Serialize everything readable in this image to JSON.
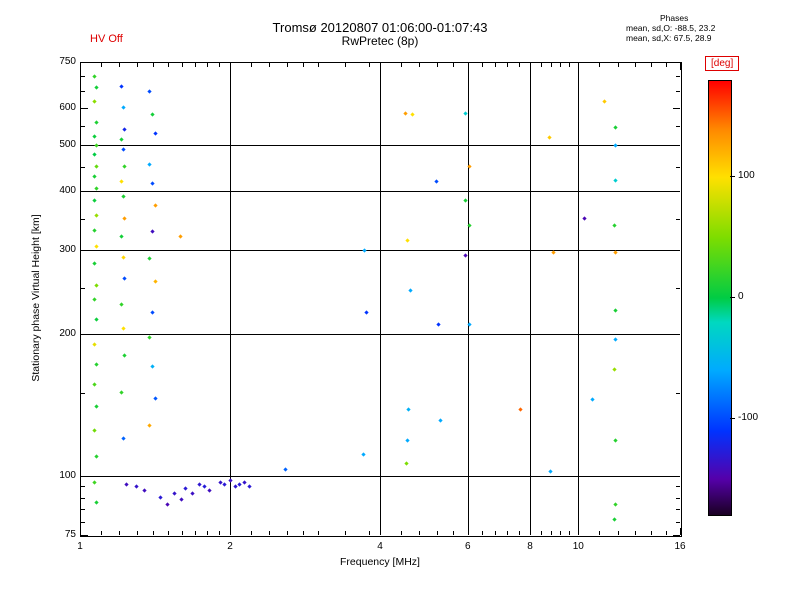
{
  "header": {
    "hv_status": "HV Off",
    "title": "Tromsø 20120807 01:06:00-01:07:43",
    "subtitle": "RwPretec (8p)",
    "phases": {
      "heading": "Phases",
      "line_o": "mean, sd,O: -88.5, 23.2",
      "line_x": "mean, sd,X:  67.5, 28.9"
    }
  },
  "axes": {
    "x": {
      "label": "Frequency [MHz]",
      "scale": "log",
      "range": [
        1,
        16
      ],
      "ticks": [
        1,
        2,
        4,
        6,
        8,
        10,
        16
      ],
      "minor_ticks": [
        1.1,
        1.2,
        1.3,
        1.4,
        1.5,
        1.6,
        1.7,
        1.8,
        1.9,
        2.2,
        2.4,
        2.6,
        2.8,
        3.0,
        3.4,
        3.8,
        4.4,
        4.8,
        5.2,
        5.6,
        6.4,
        6.8,
        7.2,
        7.6,
        8.4,
        8.8,
        9.2,
        9.6,
        11,
        12,
        13,
        14,
        15
      ],
      "grid": [
        2,
        4,
        6,
        8,
        10
      ]
    },
    "y": {
      "label": "Stationary phase Virtual Height [km]",
      "scale": "log",
      "range": [
        75,
        750
      ],
      "ticks": [
        75,
        100,
        200,
        300,
        400,
        500,
        600,
        750
      ],
      "minor_ticks": [
        80,
        85,
        90,
        95,
        150,
        250,
        350,
        450,
        550,
        650,
        700
      ],
      "grid": [
        100,
        200,
        300,
        400,
        500
      ]
    }
  },
  "colorbar": {
    "label": "[deg]",
    "label_color": "#dd0000",
    "range": [
      -180,
      180
    ],
    "ticks": [
      100,
      0,
      -100
    ],
    "stops": [
      {
        "v": -180,
        "c": "#1a0022"
      },
      {
        "v": -150,
        "c": "#5500aa"
      },
      {
        "v": -110,
        "c": "#0033ff"
      },
      {
        "v": -60,
        "c": "#00aaff"
      },
      {
        "v": -20,
        "c": "#00d8c0"
      },
      {
        "v": 0,
        "c": "#00cc44"
      },
      {
        "v": 50,
        "c": "#7ddd00"
      },
      {
        "v": 100,
        "c": "#ffe000"
      },
      {
        "v": 140,
        "c": "#ff8800"
      },
      {
        "v": 180,
        "c": "#ff0000"
      }
    ]
  },
  "chart_data": {
    "type": "scatter",
    "title": "Tromsø 20120807 01:06:00-01:07:43",
    "subtitle": "RwPretec (8p)",
    "xlabel": "Frequency [MHz]",
    "ylabel": "Stationary phase Virtual Height [km]",
    "xlim": [
      1,
      16
    ],
    "ylim": [
      75,
      750
    ],
    "x_scale": "log",
    "y_scale": "log",
    "color_scale_label": "[deg]",
    "color_range": [
      -180,
      180
    ],
    "point_fields": [
      "frequency_mhz",
      "virtual_height_km",
      "phase_deg"
    ],
    "points": [
      [
        1.07,
        700,
        20
      ],
      [
        1.08,
        662,
        8
      ],
      [
        1.07,
        620,
        55
      ],
      [
        1.08,
        560,
        12
      ],
      [
        1.07,
        522,
        5
      ],
      [
        1.08,
        500,
        25
      ],
      [
        1.07,
        478,
        0
      ],
      [
        1.08,
        452,
        40
      ],
      [
        1.07,
        430,
        10
      ],
      [
        1.08,
        405,
        20
      ],
      [
        1.07,
        383,
        5
      ],
      [
        1.08,
        356,
        60
      ],
      [
        1.07,
        331,
        15
      ],
      [
        1.08,
        305,
        100
      ],
      [
        1.07,
        281,
        10
      ],
      [
        1.08,
        253,
        50
      ],
      [
        1.07,
        236,
        20
      ],
      [
        1.08,
        214,
        5
      ],
      [
        1.07,
        190,
        90
      ],
      [
        1.08,
        172,
        15
      ],
      [
        1.07,
        156,
        30
      ],
      [
        1.08,
        140,
        10
      ],
      [
        1.07,
        125,
        45
      ],
      [
        1.08,
        110,
        15
      ],
      [
        1.07,
        97,
        25
      ],
      [
        1.08,
        88,
        10
      ],
      [
        1.21,
        665,
        -110
      ],
      [
        1.22,
        600,
        -60
      ],
      [
        1.23,
        540,
        -120
      ],
      [
        1.21,
        515,
        8
      ],
      [
        1.22,
        489,
        -100
      ],
      [
        1.23,
        452,
        20
      ],
      [
        1.21,
        420,
        100
      ],
      [
        1.22,
        390,
        12
      ],
      [
        1.23,
        350,
        130
      ],
      [
        1.21,
        320,
        8
      ],
      [
        1.22,
        290,
        105
      ],
      [
        1.23,
        262,
        -100
      ],
      [
        1.21,
        230,
        20
      ],
      [
        1.22,
        205,
        100
      ],
      [
        1.23,
        180,
        12
      ],
      [
        1.21,
        150,
        20
      ],
      [
        1.22,
        120,
        -90
      ],
      [
        1.24,
        96,
        -140
      ],
      [
        1.38,
        650,
        -100
      ],
      [
        1.4,
        580,
        8
      ],
      [
        1.42,
        530,
        -110
      ],
      [
        1.38,
        455,
        -60
      ],
      [
        1.4,
        415,
        -100
      ],
      [
        1.42,
        373,
        130
      ],
      [
        1.4,
        328,
        -140
      ],
      [
        1.38,
        288,
        12
      ],
      [
        1.42,
        258,
        120
      ],
      [
        1.4,
        222,
        -100
      ],
      [
        1.38,
        196,
        20
      ],
      [
        1.4,
        170,
        -55
      ],
      [
        1.42,
        146,
        -95
      ],
      [
        1.38,
        128,
        125
      ],
      [
        1.3,
        95,
        -135
      ],
      [
        1.35,
        93,
        -140
      ],
      [
        1.45,
        90,
        -130
      ],
      [
        1.5,
        87,
        -145
      ],
      [
        1.55,
        92,
        -135
      ],
      [
        1.6,
        89,
        -140
      ],
      [
        1.63,
        94,
        -130
      ],
      [
        1.68,
        92,
        -138
      ],
      [
        1.74,
        96,
        -132
      ],
      [
        1.78,
        95,
        -128
      ],
      [
        1.82,
        93,
        -140
      ],
      [
        1.91,
        97,
        -135
      ],
      [
        1.95,
        96,
        -130
      ],
      [
        2.0,
        98,
        -138
      ],
      [
        2.05,
        95,
        -132
      ],
      [
        2.09,
        96,
        -128
      ],
      [
        2.14,
        97,
        -135
      ],
      [
        2.19,
        95,
        -130
      ],
      [
        2.58,
        103,
        -90
      ],
      [
        1.59,
        320,
        130
      ],
      [
        3.7,
        111,
        -60
      ],
      [
        3.76,
        222,
        -110
      ],
      [
        3.72,
        300,
        -60
      ],
      [
        4.49,
        585,
        130
      ],
      [
        4.64,
        582,
        100
      ],
      [
        4.55,
        315,
        100
      ],
      [
        4.6,
        247,
        -60
      ],
      [
        4.57,
        138,
        -55
      ],
      [
        4.55,
        119,
        -60
      ],
      [
        4.52,
        106,
        50
      ],
      [
        5.2,
        420,
        -100
      ],
      [
        5.25,
        209,
        -110
      ],
      [
        5.3,
        131,
        -60
      ],
      [
        5.95,
        585,
        -30
      ],
      [
        6.05,
        450,
        130
      ],
      [
        5.95,
        383,
        10
      ],
      [
        6.05,
        339,
        15
      ],
      [
        5.95,
        293,
        -145
      ],
      [
        6.05,
        209,
        -60
      ],
      [
        7.64,
        138,
        150
      ],
      [
        8.77,
        520,
        110
      ],
      [
        8.9,
        297,
        130
      ],
      [
        8.8,
        102,
        -60
      ],
      [
        10.3,
        350,
        -145
      ],
      [
        11.3,
        620,
        110
      ],
      [
        11.9,
        545,
        10
      ],
      [
        11.85,
        500,
        -60
      ],
      [
        11.9,
        422,
        -30
      ],
      [
        11.8,
        339,
        15
      ],
      [
        11.9,
        297,
        130
      ],
      [
        11.85,
        224,
        10
      ],
      [
        11.9,
        194,
        -60
      ],
      [
        11.8,
        168,
        60
      ],
      [
        10.7,
        145,
        -60
      ],
      [
        11.9,
        119,
        15
      ],
      [
        11.9,
        87,
        20
      ],
      [
        11.8,
        81,
        10
      ]
    ]
  }
}
